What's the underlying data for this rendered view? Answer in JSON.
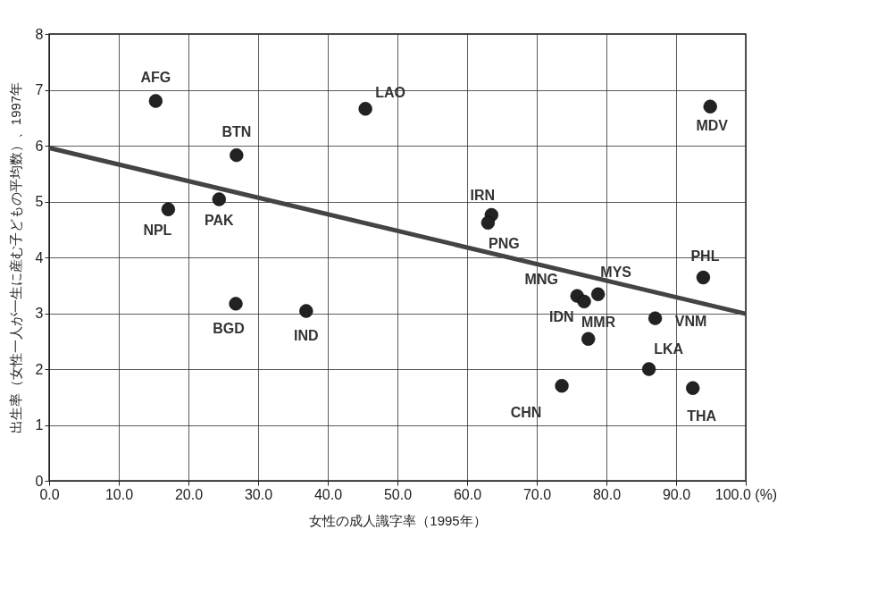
{
  "chart_data": {
    "type": "scatter",
    "xlabel": "女性の成人識字率（1995年）",
    "ylabel": "出生率（女性一人が一生に産む子どもの平均数）、1997年",
    "xlim": [
      0,
      100
    ],
    "ylim": [
      0,
      8
    ],
    "xticks": [
      {
        "value": 0,
        "label": "0.0"
      },
      {
        "value": 10,
        "label": "10.0"
      },
      {
        "value": 20,
        "label": "20.0"
      },
      {
        "value": 30,
        "label": "30.0"
      },
      {
        "value": 40,
        "label": "40.0"
      },
      {
        "value": 50,
        "label": "50.0"
      },
      {
        "value": 60,
        "label": "60.0"
      },
      {
        "value": 70,
        "label": "70.0"
      },
      {
        "value": 80,
        "label": "80.0"
      },
      {
        "value": 90,
        "label": "90.0"
      },
      {
        "value": 100,
        "label": "100.0 (%)"
      }
    ],
    "yticks": [
      0,
      1,
      2,
      3,
      4,
      5,
      6,
      7,
      8
    ],
    "grid": true,
    "marker": "circle",
    "series": [
      {
        "color": "#222222",
        "x": [
          15.3,
          45.4,
          26.9,
          24.4,
          17.1,
          26.8,
          36.9,
          94.9,
          63.5,
          63,
          93.9,
          75.8,
          76.8,
          78.8,
          87,
          77.4,
          86.1,
          73.6,
          92.4
        ],
        "values": [
          6.8,
          6.66,
          5.83,
          5.04,
          4.86,
          3.17,
          3.04,
          6.7,
          4.76,
          4.62,
          3.64,
          3.31,
          3.21,
          3.34,
          2.91,
          2.54,
          2.0,
          1.7,
          1.66
        ]
      },
      {
        "type": "line",
        "marker": "none",
        "color": "#444444",
        "x": [
          0,
          100
        ],
        "values": [
          5.96,
          2.99
        ]
      }
    ],
    "annotations": [
      {
        "text": "AFG",
        "x": 15.3,
        "y": 6.8
      },
      {
        "text": "LAO",
        "x": 45.4,
        "y": 6.66
      },
      {
        "text": "BTN",
        "x": 26.9,
        "y": 5.83
      },
      {
        "text": "PAK",
        "x": 24.4,
        "y": 5.04
      },
      {
        "text": "NPL",
        "x": 17.1,
        "y": 4.86
      },
      {
        "text": "BGD",
        "x": 26.8,
        "y": 3.17
      },
      {
        "text": "IND",
        "x": 36.9,
        "y": 3.04
      },
      {
        "text": "MDV",
        "x": 94.9,
        "y": 6.7
      },
      {
        "text": "IRN",
        "x": 63.5,
        "y": 4.76
      },
      {
        "text": "PNG",
        "x": 63,
        "y": 4.62
      },
      {
        "text": "PHL",
        "x": 93.9,
        "y": 3.64
      },
      {
        "text": "MNG",
        "x": 75.8,
        "y": 3.31
      },
      {
        "text": "MMR",
        "x": 76.8,
        "y": 3.21
      },
      {
        "text": "MYS",
        "x": 78.8,
        "y": 3.34
      },
      {
        "text": "VNM",
        "x": 87,
        "y": 2.91
      },
      {
        "text": "IDN",
        "x": 77.4,
        "y": 2.54
      },
      {
        "text": "LKA",
        "x": 86.1,
        "y": 2.0
      },
      {
        "text": "CHN",
        "x": 73.6,
        "y": 1.7
      },
      {
        "text": "THA",
        "x": 92.4,
        "y": 1.66
      }
    ]
  }
}
